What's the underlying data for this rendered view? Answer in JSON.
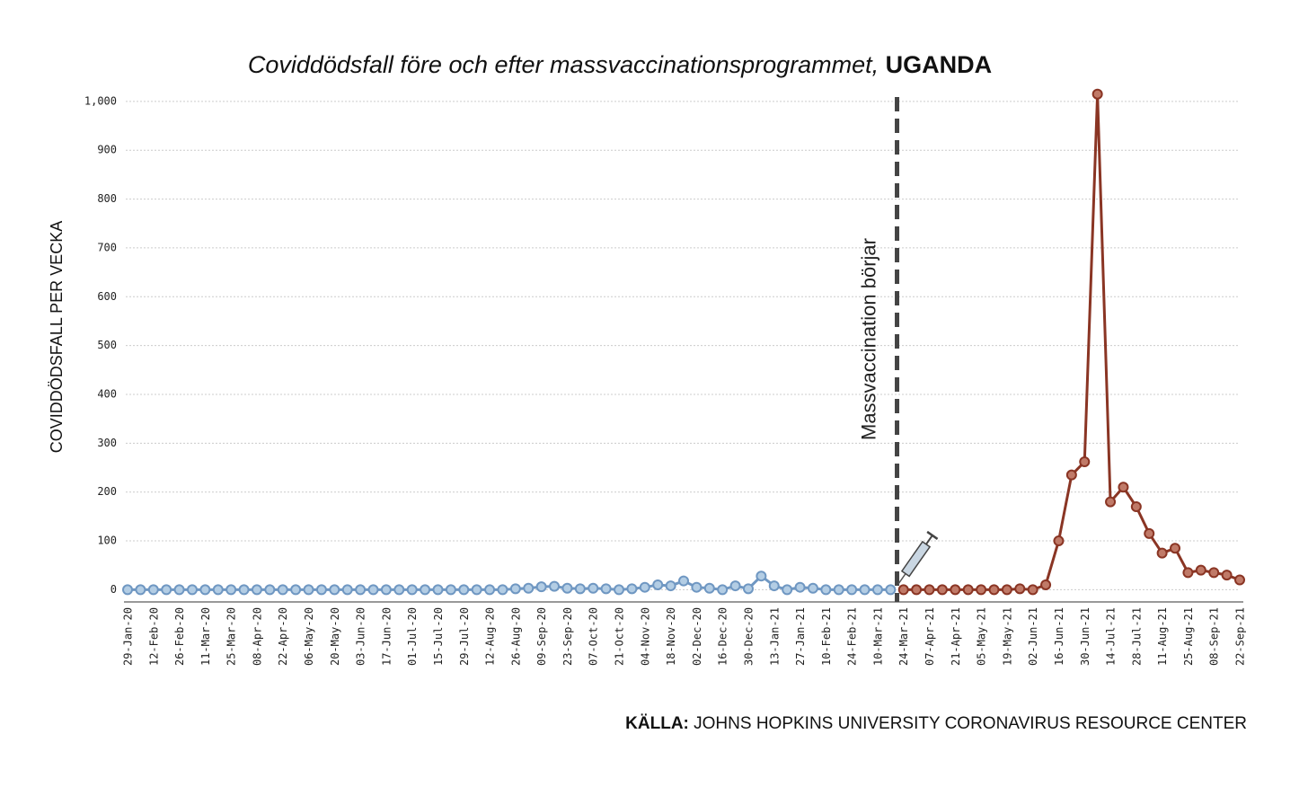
{
  "chart_data": {
    "type": "line",
    "title": "Coviddödsfall före och efter massvaccinationsprogrammet,",
    "title_emphasis": "UGANDA",
    "y_label": "COVIDDÖDSFALL PER VECKA",
    "annotation": "Massvaccination börjar",
    "source_label": "KÄLLA:",
    "source": "JOHNS HOPKINS UNIVERSITY CORONAVIRUS RESOURCE CENTER",
    "categories": [
      "29-Jan-20",
      null,
      "12-Feb-20",
      null,
      "26-Feb-20",
      null,
      "11-Mar-20",
      null,
      "25-Mar-20",
      null,
      "08-Apr-20",
      null,
      "22-Apr-20",
      null,
      "06-May-20",
      null,
      "20-May-20",
      null,
      "03-Jun-20",
      null,
      "17-Jun-20",
      null,
      "01-Jul-20",
      null,
      "15-Jul-20",
      null,
      "29-Jul-20",
      null,
      "12-Aug-20",
      null,
      "26-Aug-20",
      null,
      "09-Sep-20",
      null,
      "23-Sep-20",
      null,
      "07-Oct-20",
      null,
      "21-Oct-20",
      null,
      "04-Nov-20",
      null,
      "18-Nov-20",
      null,
      "02-Dec-20",
      null,
      "16-Dec-20",
      null,
      "30-Dec-20",
      null,
      "13-Jan-21",
      null,
      "27-Jan-21",
      null,
      "10-Feb-21",
      null,
      "24-Feb-21",
      null,
      "10-Mar-21",
      null,
      "24-Mar-21",
      null,
      "07-Apr-21",
      null,
      "21-Apr-21",
      null,
      "05-May-21",
      null,
      "19-May-21",
      null,
      "02-Jun-21",
      null,
      "16-Jun-21",
      null,
      "30-Jun-21",
      null,
      "14-Jul-21",
      null,
      "28-Jul-21",
      null,
      "11-Aug-21",
      null,
      "25-Aug-21",
      null,
      "08-Sep-21",
      null,
      "22-Sep-21"
    ],
    "series": [
      {
        "color": "#6f97c2",
        "values": [
          0,
          0,
          0,
          0,
          0,
          0,
          0,
          0,
          0,
          0,
          0,
          0,
          0,
          0,
          0,
          0,
          0,
          0,
          0,
          0,
          0,
          0,
          0,
          0,
          0,
          0,
          0,
          0,
          0,
          0,
          2,
          3,
          6,
          7,
          3,
          2,
          3,
          2,
          0,
          2,
          5,
          10,
          8,
          18,
          5,
          3,
          0,
          8,
          2,
          28,
          8,
          0,
          5,
          3,
          0,
          0,
          0,
          0,
          0,
          0,
          null,
          null,
          null,
          null,
          null,
          null,
          null,
          null,
          null,
          null,
          null,
          null,
          null,
          null,
          null,
          null,
          null,
          null,
          null,
          null,
          null,
          null,
          null,
          null,
          null,
          null,
          null
        ]
      },
      {
        "color": "#8a3524",
        "values": [
          null,
          null,
          null,
          null,
          null,
          null,
          null,
          null,
          null,
          null,
          null,
          null,
          null,
          null,
          null,
          null,
          null,
          null,
          null,
          null,
          null,
          null,
          null,
          null,
          null,
          null,
          null,
          null,
          null,
          null,
          null,
          null,
          null,
          null,
          null,
          null,
          null,
          null,
          null,
          null,
          null,
          null,
          null,
          null,
          null,
          null,
          null,
          null,
          null,
          null,
          null,
          null,
          null,
          null,
          null,
          null,
          null,
          null,
          null,
          null,
          0,
          0,
          0,
          0,
          0,
          0,
          0,
          0,
          0,
          2,
          0,
          10,
          100,
          235,
          262,
          1015,
          180,
          210,
          170,
          115,
          75,
          85,
          35,
          40,
          35,
          30,
          20
        ]
      }
    ],
    "ylim": [
      -25,
      1020
    ],
    "yticks": [
      0,
      100,
      200,
      300,
      400,
      500,
      600,
      700,
      800,
      900,
      {
        "value": 1000,
        "label": "1,000"
      }
    ],
    "grid": true
  }
}
